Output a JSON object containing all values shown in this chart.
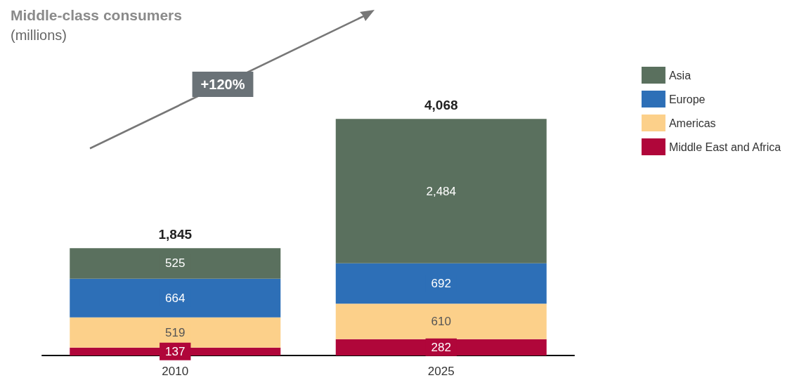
{
  "chart_data": {
    "type": "bar",
    "stacked": true,
    "title": "Middle-class consumers",
    "subtitle": "(millions)",
    "categories": [
      "2010",
      "2025"
    ],
    "series": [
      {
        "name": "Middle East and Africa",
        "color": "#b0063a",
        "values": [
          137,
          282
        ],
        "value_labels": [
          "137",
          "282"
        ]
      },
      {
        "name": "Americas",
        "color": "#fcd08a",
        "values": [
          519,
          610
        ],
        "value_labels": [
          "519",
          "610"
        ]
      },
      {
        "name": "Europe",
        "color": "#2d6fb7",
        "values": [
          664,
          692
        ],
        "value_labels": [
          "664",
          "692"
        ]
      },
      {
        "name": "Asia",
        "color": "#5a705e",
        "values": [
          525,
          2484
        ],
        "value_labels": [
          "525",
          "2,484"
        ]
      }
    ],
    "totals": [
      "1,845",
      "4,068"
    ],
    "annotations": [
      "+120%"
    ],
    "legend": "right",
    "grid": false
  }
}
